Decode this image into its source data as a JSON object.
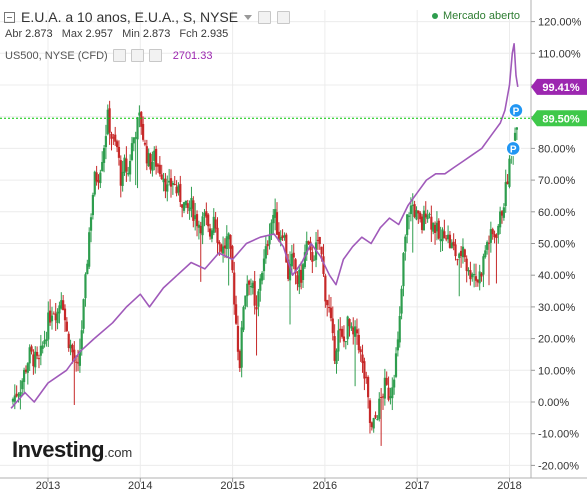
{
  "header": {
    "title": "E.U.A. a 10 anos, E.U.A., S, NYSE",
    "market_status": "Mercado aberto",
    "ohlc": {
      "open_label": "Abr",
      "open": "2.873",
      "high_label": "Max",
      "high": "2.957",
      "low_label": "Min",
      "low": "2.873",
      "close_label": "Fch",
      "close": "2.935"
    },
    "overlay_name": "US500, NYSE (CFD)",
    "overlay_value": "2701.33"
  },
  "logo": {
    "brand": "Investing",
    "suffix": ".com"
  },
  "colors": {
    "up_candle": "#2e9d4e",
    "down_candle": "#c62828",
    "overlay_line": "#a05aba",
    "purple_badge": "#9c27b0",
    "green_badge": "#3fc84a",
    "marker_blue": "#2196f3",
    "dotted_line": "#00c800"
  },
  "chart_data": {
    "type": "candlestick_with_line",
    "x_labels": [
      "2013",
      "2014",
      "2015",
      "2016",
      "2017",
      "2018"
    ],
    "y_ticks": [
      "120.00%",
      "110.00%",
      "100.00%",
      "90.00%",
      "80.00%",
      "70.00%",
      "60.00%",
      "50.00%",
      "40.00%",
      "30.00%",
      "20.00%",
      "10.00%",
      "0.00%",
      "-10.00%",
      "-20.00%"
    ],
    "ylim": [
      -20,
      120
    ],
    "y_unit": "%",
    "series": [
      {
        "name": "E.U.A. a 10 anos",
        "kind": "candlestick",
        "close_path": [
          [
            2012.6,
            0
          ],
          [
            2012.7,
            5
          ],
          [
            2012.8,
            15
          ],
          [
            2012.9,
            12
          ],
          [
            2013.0,
            25
          ],
          [
            2013.05,
            30
          ],
          [
            2013.1,
            28
          ],
          [
            2013.15,
            35
          ],
          [
            2013.2,
            22
          ],
          [
            2013.27,
            15
          ],
          [
            2013.32,
            8
          ],
          [
            2013.35,
            18
          ],
          [
            2013.4,
            35
          ],
          [
            2013.45,
            55
          ],
          [
            2013.5,
            70
          ],
          [
            2013.55,
            72
          ],
          [
            2013.6,
            80
          ],
          [
            2013.65,
            90
          ],
          [
            2013.7,
            82
          ],
          [
            2013.75,
            80
          ],
          [
            2013.8,
            68
          ],
          [
            2013.83,
            75
          ],
          [
            2013.87,
            72
          ],
          [
            2013.9,
            80
          ],
          [
            2013.95,
            86
          ],
          [
            2014.0,
            90
          ],
          [
            2014.05,
            80
          ],
          [
            2014.1,
            75
          ],
          [
            2014.15,
            77
          ],
          [
            2014.2,
            74
          ],
          [
            2014.25,
            72
          ],
          [
            2014.3,
            66
          ],
          [
            2014.35,
            70
          ],
          [
            2014.4,
            66
          ],
          [
            2014.45,
            64
          ],
          [
            2014.5,
            60
          ],
          [
            2014.55,
            62
          ],
          [
            2014.6,
            58
          ],
          [
            2014.65,
            56
          ],
          [
            2014.7,
            58
          ],
          [
            2014.75,
            52
          ],
          [
            2014.8,
            60
          ],
          [
            2014.85,
            50
          ],
          [
            2014.9,
            48
          ],
          [
            2014.95,
            52
          ],
          [
            2015.0,
            40
          ],
          [
            2015.05,
            20
          ],
          [
            2015.08,
            12
          ],
          [
            2015.12,
            32
          ],
          [
            2015.17,
            40
          ],
          [
            2015.22,
            35
          ],
          [
            2015.25,
            25
          ],
          [
            2015.3,
            40
          ],
          [
            2015.35,
            45
          ],
          [
            2015.4,
            55
          ],
          [
            2015.45,
            60
          ],
          [
            2015.5,
            52
          ],
          [
            2015.55,
            55
          ],
          [
            2015.6,
            40
          ],
          [
            2015.65,
            45
          ],
          [
            2015.7,
            38
          ],
          [
            2015.75,
            40
          ],
          [
            2015.8,
            50
          ],
          [
            2015.85,
            45
          ],
          [
            2015.9,
            48
          ],
          [
            2015.95,
            50
          ],
          [
            2016.0,
            35
          ],
          [
            2016.05,
            28
          ],
          [
            2016.1,
            15
          ],
          [
            2016.15,
            22
          ],
          [
            2016.2,
            18
          ],
          [
            2016.25,
            25
          ],
          [
            2016.3,
            20
          ],
          [
            2016.35,
            22
          ],
          [
            2016.4,
            12
          ],
          [
            2016.45,
            5
          ],
          [
            2016.5,
            -10
          ],
          [
            2016.55,
            -5
          ],
          [
            2016.6,
            0
          ],
          [
            2016.65,
            5
          ],
          [
            2016.7,
            2
          ],
          [
            2016.75,
            10
          ],
          [
            2016.8,
            20
          ],
          [
            2016.85,
            45
          ],
          [
            2016.9,
            60
          ],
          [
            2016.95,
            62
          ],
          [
            2017.0,
            58
          ],
          [
            2017.05,
            55
          ],
          [
            2017.1,
            62
          ],
          [
            2017.15,
            57
          ],
          [
            2017.2,
            55
          ],
          [
            2017.25,
            50
          ],
          [
            2017.3,
            55
          ],
          [
            2017.35,
            50
          ],
          [
            2017.4,
            48
          ],
          [
            2017.45,
            44
          ],
          [
            2017.5,
            50
          ],
          [
            2017.55,
            40
          ],
          [
            2017.6,
            42
          ],
          [
            2017.65,
            38
          ],
          [
            2017.7,
            42
          ],
          [
            2017.75,
            50
          ],
          [
            2017.8,
            52
          ],
          [
            2017.85,
            53
          ],
          [
            2017.9,
            58
          ],
          [
            2017.95,
            65
          ],
          [
            2018.0,
            75
          ],
          [
            2018.03,
            80
          ],
          [
            2018.06,
            85
          ],
          [
            2018.08,
            89.5
          ]
        ]
      },
      {
        "name": "US500, NYSE (CFD)",
        "kind": "line",
        "points": [
          [
            2012.6,
            -2
          ],
          [
            2012.75,
            3
          ],
          [
            2012.85,
            0
          ],
          [
            2013.0,
            6
          ],
          [
            2013.2,
            10
          ],
          [
            2013.35,
            16
          ],
          [
            2013.5,
            20
          ],
          [
            2013.7,
            25
          ],
          [
            2013.85,
            30
          ],
          [
            2014.0,
            34
          ],
          [
            2014.1,
            30
          ],
          [
            2014.25,
            36
          ],
          [
            2014.4,
            40
          ],
          [
            2014.55,
            44
          ],
          [
            2014.7,
            42
          ],
          [
            2014.85,
            47
          ],
          [
            2015.0,
            45
          ],
          [
            2015.15,
            50
          ],
          [
            2015.3,
            52
          ],
          [
            2015.45,
            53
          ],
          [
            2015.55,
            49
          ],
          [
            2015.65,
            40
          ],
          [
            2015.75,
            44
          ],
          [
            2015.85,
            50
          ],
          [
            2015.95,
            46
          ],
          [
            2016.05,
            40
          ],
          [
            2016.12,
            37
          ],
          [
            2016.2,
            45
          ],
          [
            2016.3,
            49
          ],
          [
            2016.4,
            52
          ],
          [
            2016.5,
            50
          ],
          [
            2016.6,
            55
          ],
          [
            2016.7,
            58
          ],
          [
            2016.8,
            56
          ],
          [
            2016.9,
            62
          ],
          [
            2017.0,
            66
          ],
          [
            2017.1,
            70
          ],
          [
            2017.2,
            72
          ],
          [
            2017.3,
            72
          ],
          [
            2017.4,
            74
          ],
          [
            2017.5,
            76
          ],
          [
            2017.6,
            78
          ],
          [
            2017.7,
            80
          ],
          [
            2017.8,
            84
          ],
          [
            2017.9,
            88
          ],
          [
            2017.95,
            92
          ],
          [
            2018.0,
            100
          ],
          [
            2018.03,
            110
          ],
          [
            2018.05,
            113
          ],
          [
            2018.07,
            103
          ],
          [
            2018.09,
            99.41
          ]
        ]
      }
    ],
    "last_values": [
      {
        "series": "US500, NYSE (CFD)",
        "label": "99.41%",
        "value": 99.41
      },
      {
        "series": "E.U.A. a 10 anos",
        "label": "89.50%",
        "value": 89.5
      }
    ],
    "markers": [
      {
        "label": "P",
        "x": 2018.07,
        "value": 92
      },
      {
        "label": "P",
        "x": 2018.04,
        "value": 80
      }
    ],
    "reference_line": {
      "value": 89.5,
      "style": "dotted"
    },
    "grid": true
  }
}
